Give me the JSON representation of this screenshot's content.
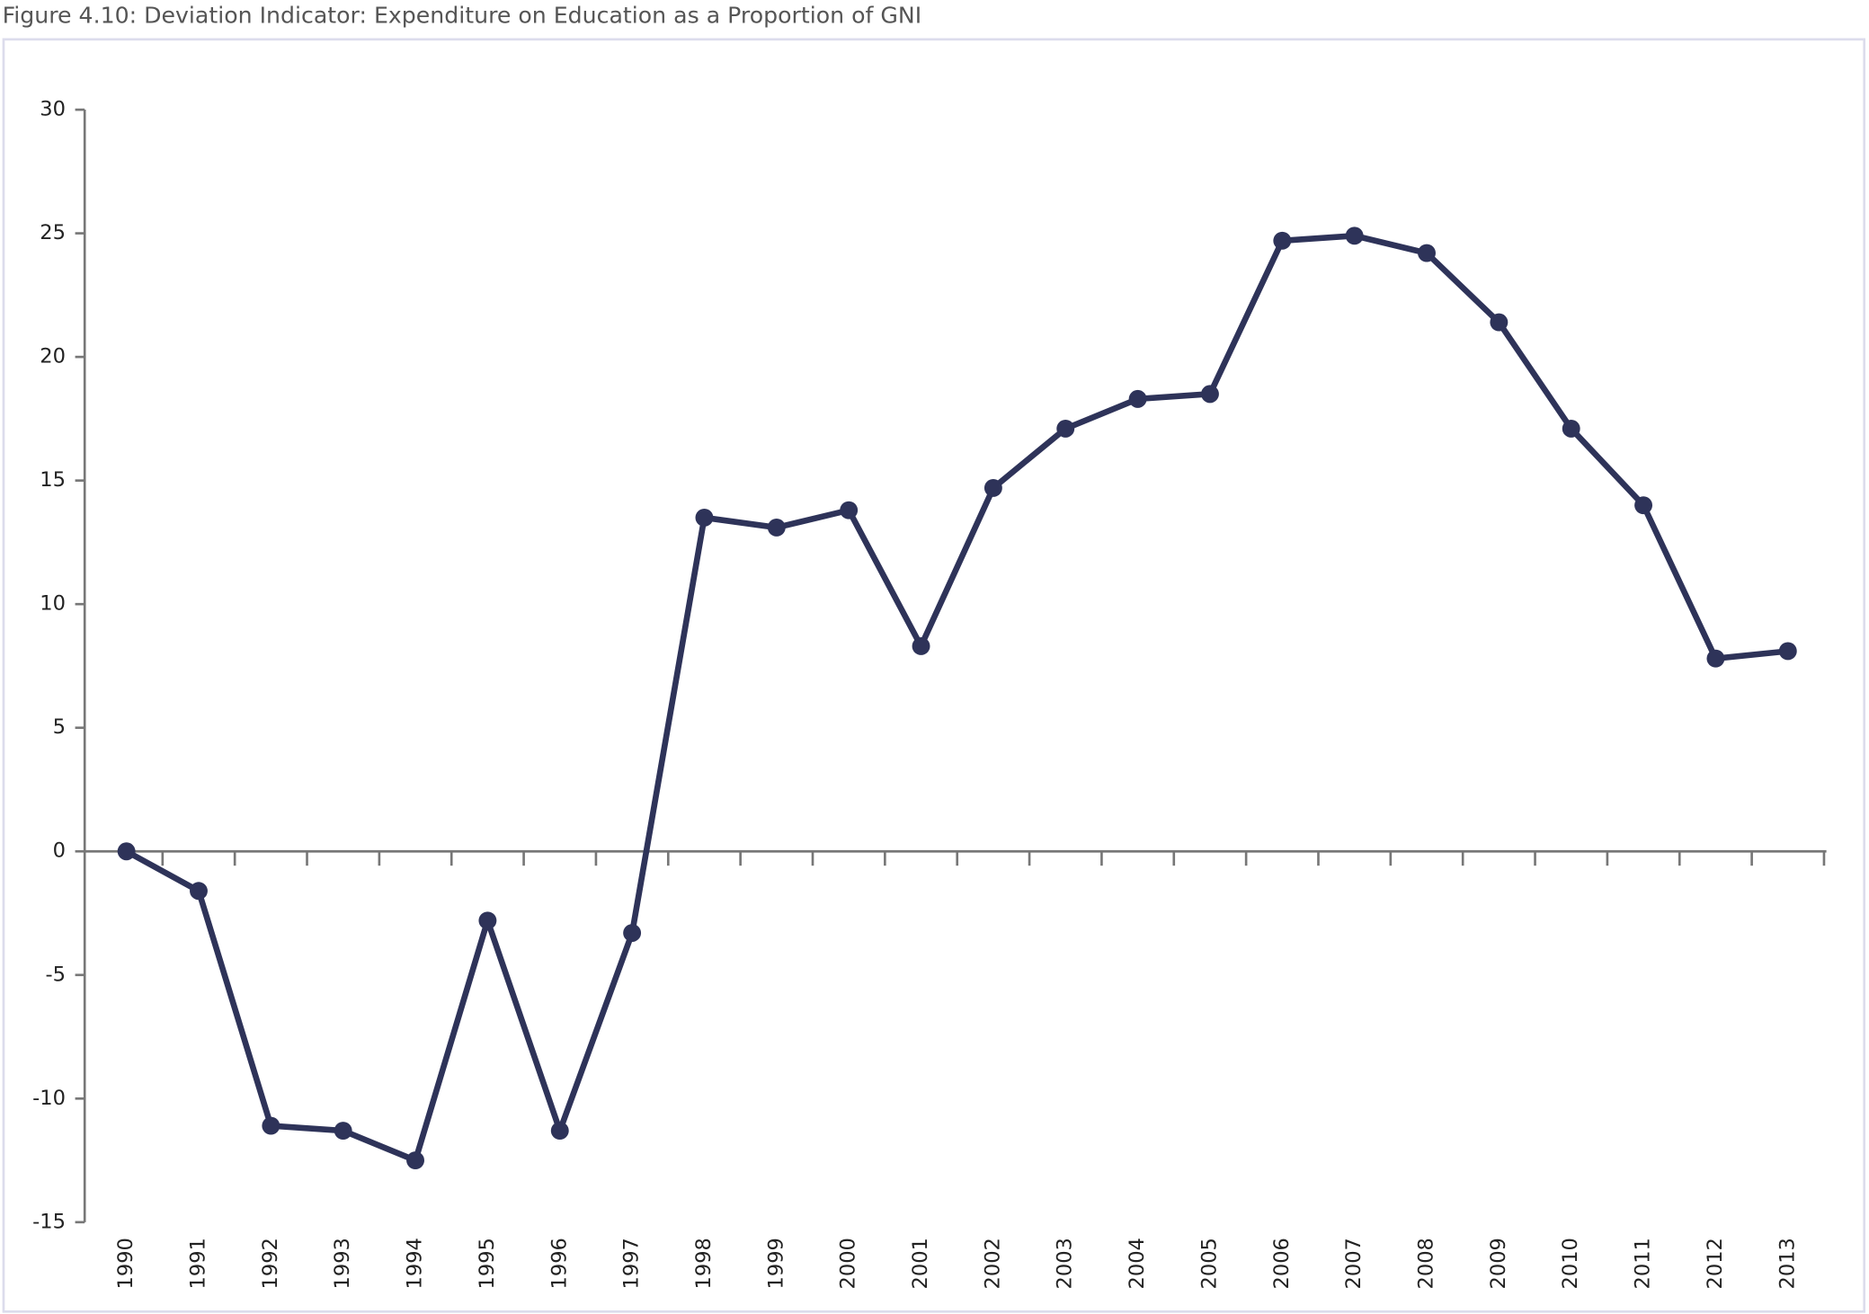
{
  "chart_data": {
    "type": "line",
    "title": "Figure 4.10: Deviation Indicator: Expenditure on Education as a Proportion of GNI",
    "categories": [
      "1990",
      "1991",
      "1992",
      "1993",
      "1994",
      "1995",
      "1996",
      "1997",
      "1998",
      "1999",
      "2000",
      "2001",
      "2002",
      "2003",
      "2004",
      "2005",
      "2006",
      "2007",
      "2008",
      "2009",
      "2010",
      "2011",
      "2012",
      "2013"
    ],
    "values": [
      0,
      -1.6,
      -11.1,
      -11.3,
      -12.5,
      -2.8,
      -11.3,
      -3.3,
      13.5,
      13.1,
      13.8,
      8.3,
      14.7,
      17.1,
      18.3,
      18.5,
      24.7,
      24.9,
      24.2,
      21.4,
      17.1,
      14.0,
      7.8,
      8.1
    ],
    "color": "#2e3359",
    "ylim": [
      -15,
      30
    ],
    "yticks": [
      -15,
      -10,
      -5,
      0,
      5,
      10,
      15,
      20,
      25,
      30
    ]
  }
}
